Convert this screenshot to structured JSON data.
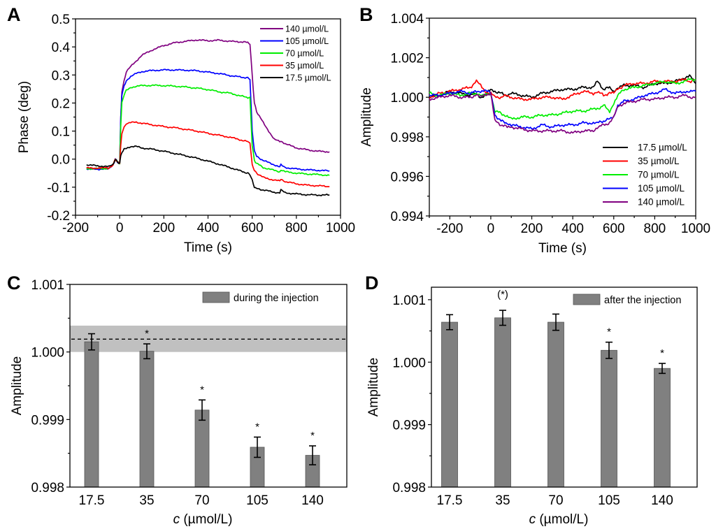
{
  "figure": {
    "panels": [
      "A",
      "B",
      "C",
      "D"
    ]
  },
  "chart_data": [
    {
      "panel": "A",
      "type": "line",
      "title": "",
      "xlabel": "Time (s)",
      "ylabel": "Phase (deg)",
      "xlim": [
        -200,
        1000
      ],
      "ylim": [
        -0.2,
        0.5
      ],
      "xticks": [
        "-200",
        "0",
        "200",
        "400",
        "600",
        "800",
        "1000"
      ],
      "yticks": [
        "-0.2",
        "-0.1",
        "0.0",
        "0.1",
        "0.2",
        "0.3",
        "0.4",
        "0.5"
      ],
      "legend_position": "top-right",
      "legend": [
        "140 µmol/L",
        "105 µmol/L",
        "70 µmol/L",
        "35 µmol/L",
        "17.5 µmol/L"
      ],
      "x": [
        -150,
        -100,
        -50,
        -30,
        -20,
        -10,
        0,
        5,
        10,
        20,
        30,
        50,
        75,
        100,
        150,
        200,
        250,
        300,
        350,
        400,
        450,
        500,
        550,
        580,
        590,
        600,
        610,
        620,
        650,
        700,
        725,
        730,
        750,
        800,
        850,
        900,
        950
      ],
      "series": [
        {
          "name": "140 µmol/L",
          "color": "#800080",
          "values": [
            -0.033,
            -0.034,
            -0.033,
            -0.02,
            0.0,
            -0.01,
            -0.015,
            0.15,
            0.24,
            0.28,
            0.31,
            0.33,
            0.35,
            0.37,
            0.39,
            0.405,
            0.415,
            0.42,
            0.425,
            0.422,
            0.424,
            0.42,
            0.418,
            0.416,
            0.41,
            0.3,
            0.2,
            0.17,
            0.13,
            0.07,
            0.063,
            0.065,
            0.055,
            0.04,
            0.033,
            0.028,
            0.026
          ]
        },
        {
          "name": "105 µmol/L",
          "color": "#0000ff",
          "values": [
            -0.035,
            -0.036,
            -0.034,
            -0.02,
            0.0,
            -0.01,
            -0.015,
            0.15,
            0.23,
            0.26,
            0.28,
            0.295,
            0.305,
            0.312,
            0.316,
            0.318,
            0.318,
            0.317,
            0.315,
            0.31,
            0.305,
            0.298,
            0.292,
            0.29,
            0.285,
            0.1,
            0.03,
            0.01,
            -0.005,
            -0.02,
            -0.028,
            -0.02,
            -0.03,
            -0.035,
            -0.038,
            -0.04,
            -0.042
          ]
        },
        {
          "name": "70 µmol/L",
          "color": "#00ee00",
          "values": [
            -0.034,
            -0.034,
            -0.033,
            -0.02,
            0.0,
            -0.01,
            -0.015,
            0.12,
            0.2,
            0.23,
            0.245,
            0.255,
            0.26,
            0.262,
            0.263,
            0.262,
            0.26,
            0.257,
            0.253,
            0.248,
            0.24,
            0.235,
            0.225,
            0.22,
            0.218,
            0.05,
            -0.005,
            -0.015,
            -0.03,
            -0.04,
            -0.045,
            -0.04,
            -0.045,
            -0.05,
            -0.053,
            -0.055,
            -0.058
          ]
        },
        {
          "name": "35 µmol/L",
          "color": "#ff0000",
          "values": [
            -0.032,
            -0.032,
            -0.031,
            -0.02,
            0.0,
            -0.01,
            -0.015,
            0.05,
            0.09,
            0.115,
            0.125,
            0.13,
            0.132,
            0.128,
            0.122,
            0.116,
            0.112,
            0.106,
            0.1,
            0.092,
            0.085,
            0.078,
            0.068,
            0.062,
            0.058,
            -0.02,
            -0.04,
            -0.05,
            -0.065,
            -0.075,
            -0.078,
            -0.07,
            -0.08,
            -0.088,
            -0.093,
            -0.095,
            -0.098
          ]
        },
        {
          "name": "17.5 µmol/L",
          "color": "#000000",
          "values": [
            -0.02,
            -0.024,
            -0.027,
            -0.02,
            0.0,
            -0.01,
            -0.015,
            0.01,
            0.025,
            0.035,
            0.04,
            0.045,
            0.045,
            0.04,
            0.035,
            0.028,
            0.02,
            0.012,
            0.003,
            -0.007,
            -0.018,
            -0.03,
            -0.043,
            -0.05,
            -0.055,
            -0.075,
            -0.1,
            -0.105,
            -0.11,
            -0.118,
            -0.12,
            -0.11,
            -0.12,
            -0.124,
            -0.127,
            -0.128,
            -0.128
          ]
        }
      ]
    },
    {
      "panel": "B",
      "type": "line",
      "title": "",
      "xlabel": "Time (s)",
      "ylabel": "Amplitude",
      "xlim": [
        -300,
        1000
      ],
      "ylim": [
        0.994,
        1.004
      ],
      "xticks": [
        "-200",
        "0",
        "200",
        "400",
        "600",
        "800",
        "1000"
      ],
      "yticks": [
        "0.994",
        "0.996",
        "0.998",
        "1.000",
        "1.002",
        "1.004"
      ],
      "legend_position": "bottom-right",
      "legend": [
        "17.5 µmol/L",
        "35 µmol/L",
        "70 µmol/L",
        "105 µmol/L",
        "140 µmol/L"
      ],
      "x": [
        -300,
        -250,
        -200,
        -150,
        -100,
        -70,
        -50,
        -30,
        0,
        20,
        50,
        80,
        100,
        150,
        200,
        250,
        300,
        350,
        400,
        450,
        500,
        520,
        550,
        580,
        600,
        620,
        650,
        700,
        750,
        800,
        850,
        900,
        950,
        970,
        1000
      ],
      "series": [
        {
          "name": "17.5 µmol/L",
          "color": "#000000",
          "values": [
            1.0,
            1.0001,
            1.0003,
            1.0002,
            1.0001,
            1.0002,
            1.0,
            1.0001,
            1.0004,
            1.0003,
            1.0002,
            1.0001,
            1.0002,
            1.0001,
            1.0,
            1.0002,
            1.0003,
            1.0004,
            1.0004,
            1.0005,
            1.0005,
            1.0008,
            1.0004,
            1.0005,
            1.0003,
            1.0005,
            1.0006,
            1.0006,
            1.0005,
            1.0007,
            1.0007,
            1.0008,
            1.001,
            1.0011,
            1.0007
          ]
        },
        {
          "name": "35 µmol/L",
          "color": "#ff0000",
          "values": [
            1.0,
            1.0002,
            1.0003,
            1.0004,
            1.0005,
            1.0008,
            1.0006,
            1.0003,
            1.0002,
            1.0,
            1.0,
            1.0001,
            1.0,
            0.9999,
            0.9999,
            1.0,
            1.0,
            0.9999,
            1.0001,
            1.0003,
            1.0002,
            1.0003,
            1.0001,
            1.0002,
            1.0002,
            1.0004,
            1.0006,
            1.0007,
            1.0007,
            1.0008,
            1.0008,
            1.0008,
            1.0009,
            1.0008,
            1.0009
          ]
        },
        {
          "name": "70 µmol/L",
          "color": "#00ee00",
          "values": [
            1.0002,
            1.0001,
            1.0002,
            1.0001,
            1.0002,
            1.0002,
            1.0001,
            1.0001,
            1.0002,
            0.9993,
            0.9992,
            0.999,
            0.9989,
            0.999,
            0.999,
            0.9991,
            0.9991,
            0.9992,
            0.9993,
            0.9993,
            0.9994,
            0.9994,
            0.9996,
            0.9993,
            0.9997,
            1.0001,
            1.0004,
            1.0005,
            1.0006,
            1.0007,
            1.0008,
            1.0007,
            1.0008,
            1.0009,
            1.0009
          ]
        },
        {
          "name": "105 µmol/L",
          "color": "#0000ff",
          "values": [
            1.0001,
            1.0001,
            1.0002,
            1.0003,
            1.0002,
            1.0003,
            1.0003,
            1.0004,
            1.0002,
            0.9991,
            0.9988,
            0.9987,
            0.9986,
            0.9985,
            0.9984,
            0.9986,
            0.9985,
            0.9986,
            0.9986,
            0.9987,
            0.9987,
            0.9987,
            0.9988,
            0.9989,
            0.999,
            0.9996,
            0.9998,
            0.9999,
            1.0001,
            1.0002,
            1.0004,
            1.0002,
            1.0003,
            1.0003,
            1.0003
          ]
        },
        {
          "name": "140 µmol/L",
          "color": "#800080",
          "values": [
            0.9999,
            1.0,
            1.0001,
            1.0,
            1.0,
            1.0001,
            1.0,
            1.0001,
            1.0002,
            0.9988,
            0.9986,
            0.9985,
            0.9985,
            0.9984,
            0.9983,
            0.9983,
            0.9983,
            0.9983,
            0.9982,
            0.9983,
            0.9983,
            0.9985,
            0.9986,
            0.9987,
            0.999,
            0.9995,
            0.9997,
            0.9998,
            0.9999,
            0.9999,
            1.0,
            1.0,
            1.0001,
            1.0,
            1.0
          ]
        }
      ]
    },
    {
      "panel": "C",
      "type": "bar",
      "title": "",
      "xlabel_italic": "c",
      "xlabel_rest": " (µmol/L)",
      "ylabel": "Amplitude",
      "ylim": [
        0.998,
        1.001
      ],
      "yticks": [
        "0.998",
        "0.999",
        "1.000",
        "1.001"
      ],
      "categories": [
        "17.5",
        "35",
        "70",
        "105",
        "140"
      ],
      "values": [
        1.00015,
        1.00001,
        0.99914,
        0.99859,
        0.99847
      ],
      "errors": [
        0.00012,
        0.00011,
        0.00015,
        0.00015,
        0.00014
      ],
      "annotations": [
        "",
        "*",
        "*",
        "*",
        "*"
      ],
      "reference_line": 1.00019,
      "reference_band": [
        1.0,
        1.00039
      ],
      "legend": [
        "during the injection"
      ],
      "legend_position": "top-right"
    },
    {
      "panel": "D",
      "type": "bar",
      "title": "",
      "xlabel_italic": "c",
      "xlabel_rest": " (µmol/L)",
      "ylabel": "Amplitude",
      "ylim": [
        0.998,
        1.0012
      ],
      "yticks": [
        "0.998",
        "0.999",
        "1.000",
        "1.001"
      ],
      "categories": [
        "17.5",
        "35",
        "70",
        "105",
        "140"
      ],
      "values": [
        1.00064,
        1.00071,
        1.00064,
        1.00019,
        0.9999
      ],
      "errors": [
        0.00012,
        0.00012,
        0.00013,
        0.00013,
        8e-05
      ],
      "annotations": [
        "",
        "(*)",
        "",
        "*",
        "*"
      ],
      "legend": [
        "after the injection"
      ],
      "legend_position": "top-right"
    }
  ]
}
